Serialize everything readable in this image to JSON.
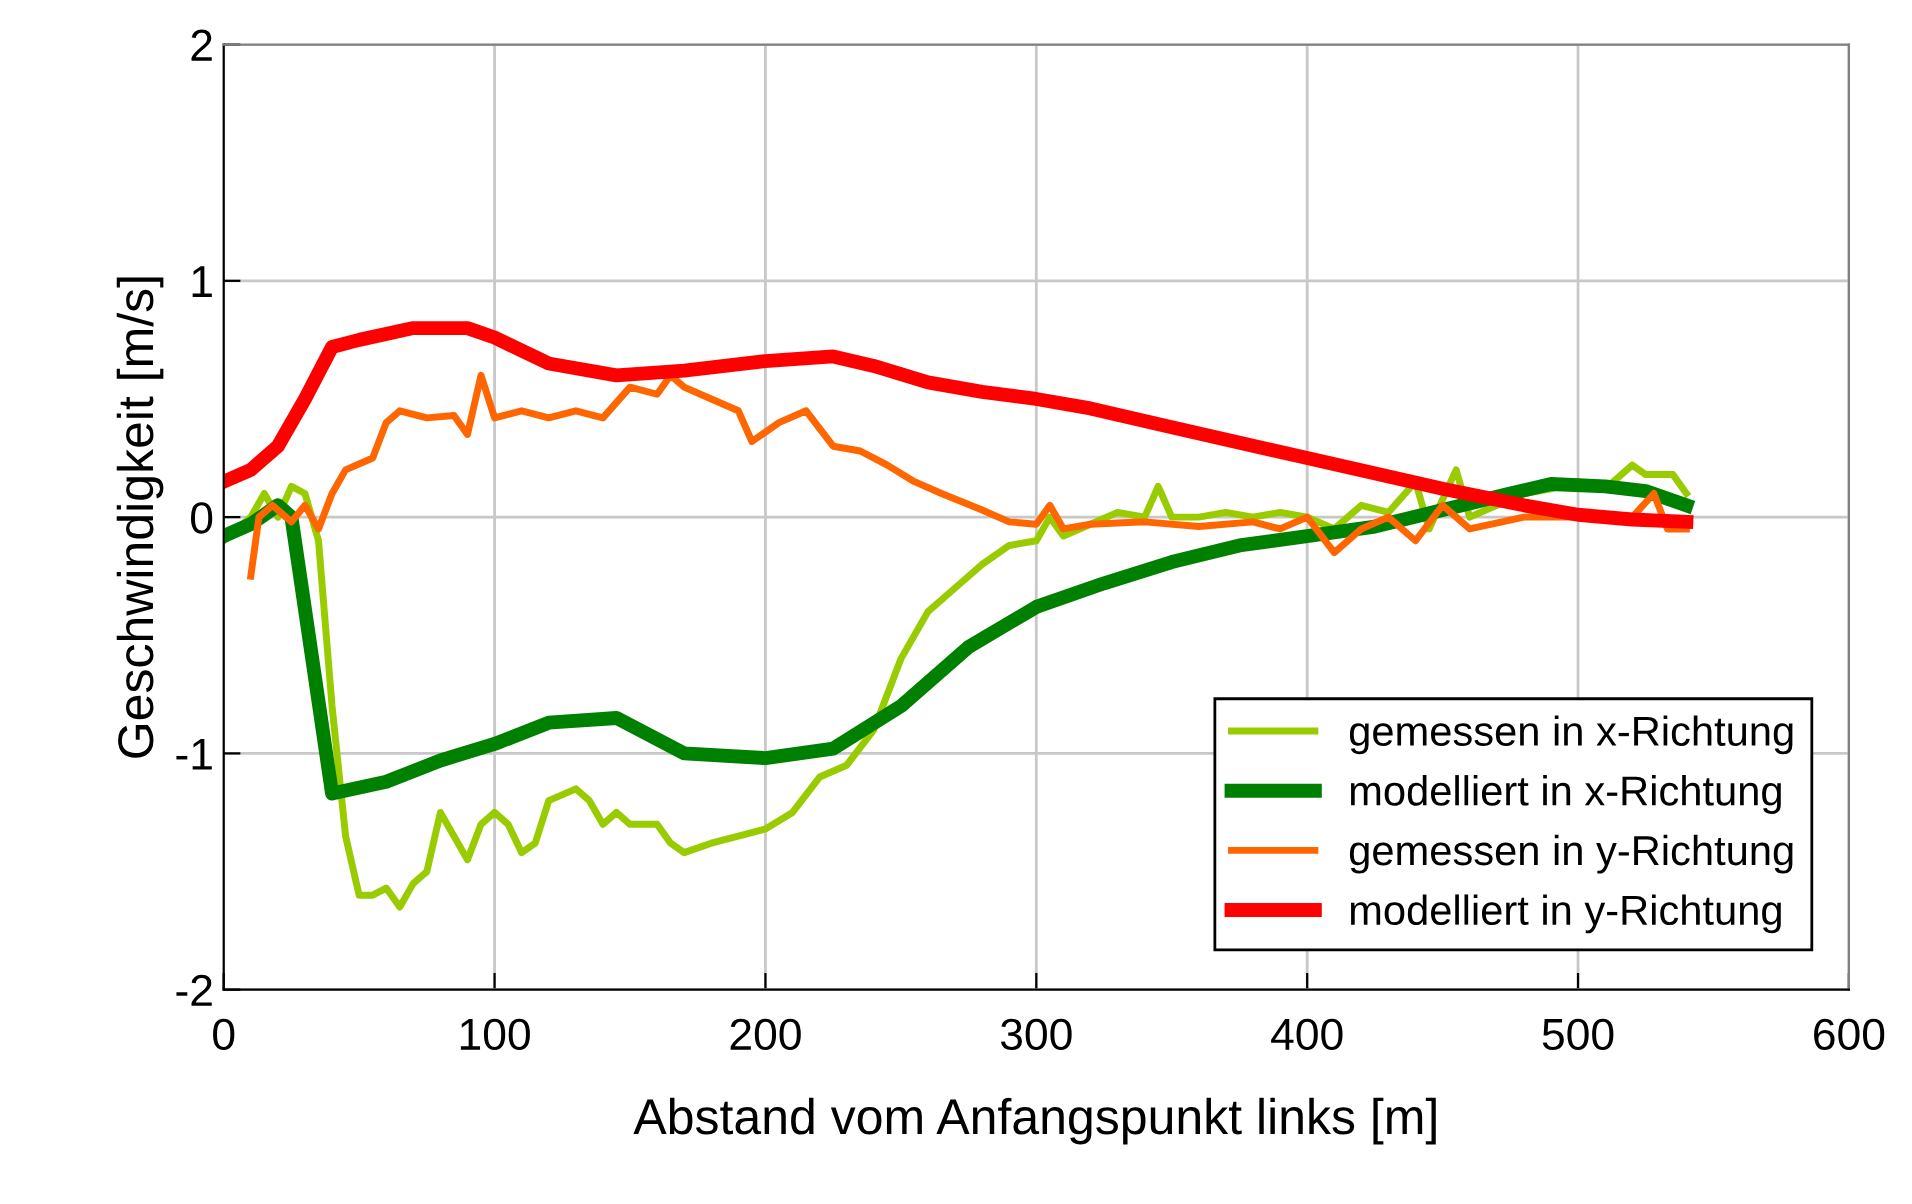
{
  "chart_data": {
    "type": "line",
    "xlabel": "Abstand vom Anfangspunkt links [m]",
    "ylabel": "Geschwindigkeit [m/s]",
    "xlim": [
      0,
      600
    ],
    "xticks": [
      0,
      100,
      200,
      300,
      400,
      500,
      600
    ],
    "ylim": [
      -2,
      2
    ],
    "yticks": [
      -2,
      -1,
      0,
      1,
      2
    ],
    "grid": true,
    "legend": "bottom right",
    "marker": "none",
    "line_style": "solid",
    "series": [
      {
        "name": "gemessen in x-Richtung",
        "color": "#99cc00",
        "x": [
          0,
          10,
          15,
          20,
          25,
          30,
          35,
          40,
          45,
          50,
          55,
          60,
          65,
          70,
          75,
          80,
          85,
          90,
          95,
          100,
          105,
          110,
          115,
          120,
          130,
          135,
          140,
          145,
          150,
          160,
          165,
          170,
          180,
          190,
          200,
          210,
          220,
          230,
          240,
          250,
          260,
          270,
          280,
          290,
          300,
          305,
          310,
          320,
          330,
          340,
          345,
          350,
          360,
          370,
          380,
          390,
          400,
          410,
          420,
          430,
          440,
          445,
          455,
          460,
          470,
          480,
          490,
          500,
          510,
          520,
          525,
          535,
          540
        ],
        "values": [
          -0.1,
          0.0,
          0.1,
          0.0,
          0.13,
          0.1,
          -0.1,
          -0.8,
          -1.35,
          -1.6,
          -1.6,
          -1.57,
          -1.65,
          -1.55,
          -1.5,
          -1.25,
          -1.35,
          -1.45,
          -1.3,
          -1.25,
          -1.3,
          -1.42,
          -1.38,
          -1.2,
          -1.15,
          -1.2,
          -1.3,
          -1.25,
          -1.3,
          -1.3,
          -1.38,
          -1.42,
          -1.38,
          -1.35,
          -1.32,
          -1.25,
          -1.1,
          -1.05,
          -0.9,
          -0.6,
          -0.4,
          -0.3,
          -0.2,
          -0.12,
          -0.1,
          0.0,
          -0.08,
          -0.03,
          0.02,
          0.0,
          0.13,
          0.0,
          0.0,
          0.02,
          0.0,
          0.02,
          0.0,
          -0.05,
          0.05,
          0.02,
          0.15,
          -0.05,
          0.2,
          0.0,
          0.05,
          0.1,
          0.12,
          0.15,
          0.12,
          0.22,
          0.18,
          0.18,
          0.1
        ]
      },
      {
        "name": "modelliert in x-Richtung",
        "color": "#008000",
        "x": [
          0,
          10,
          20,
          25,
          40,
          60,
          80,
          100,
          120,
          145,
          170,
          200,
          225,
          250,
          275,
          300,
          325,
          350,
          375,
          400,
          425,
          450,
          475,
          490,
          510,
          525,
          540
        ],
        "values": [
          -0.08,
          -0.03,
          0.05,
          0.0,
          -1.17,
          -1.12,
          -1.03,
          -0.96,
          -0.87,
          -0.85,
          -1.0,
          -1.02,
          -0.98,
          -0.8,
          -0.55,
          -0.38,
          -0.28,
          -0.19,
          -0.12,
          -0.08,
          -0.04,
          0.03,
          0.1,
          0.14,
          0.13,
          0.11,
          0.05
        ]
      },
      {
        "name": "gemessen in y-Richtung",
        "color": "#ff6600",
        "x": [
          10,
          13,
          18,
          25,
          30,
          35,
          40,
          45,
          55,
          60,
          65,
          75,
          85,
          90,
          95,
          100,
          110,
          120,
          130,
          140,
          150,
          160,
          165,
          170,
          180,
          190,
          195,
          205,
          215,
          225,
          235,
          245,
          255,
          265,
          280,
          290,
          300,
          305,
          310,
          320,
          340,
          360,
          380,
          390,
          400,
          410,
          420,
          430,
          440,
          450,
          460,
          480,
          500,
          520,
          528,
          533,
          540
        ],
        "values": [
          -0.25,
          0.0,
          0.05,
          -0.02,
          0.05,
          -0.05,
          0.1,
          0.2,
          0.25,
          0.4,
          0.45,
          0.42,
          0.43,
          0.35,
          0.6,
          0.42,
          0.45,
          0.42,
          0.45,
          0.42,
          0.55,
          0.52,
          0.6,
          0.55,
          0.5,
          0.45,
          0.32,
          0.4,
          0.45,
          0.3,
          0.28,
          0.22,
          0.15,
          0.1,
          0.03,
          -0.02,
          -0.03,
          0.05,
          -0.05,
          -0.03,
          -0.02,
          -0.04,
          -0.02,
          -0.05,
          0.0,
          -0.15,
          -0.05,
          0.0,
          -0.1,
          0.05,
          -0.05,
          0.0,
          0.0,
          0.0,
          0.1,
          -0.05,
          -0.05
        ]
      },
      {
        "name": "modelliert in y-Richtung",
        "color": "#ff0000",
        "x": [
          0,
          10,
          20,
          30,
          40,
          50,
          70,
          90,
          100,
          120,
          145,
          170,
          200,
          225,
          240,
          260,
          280,
          300,
          320,
          350,
          400,
          450,
          480,
          500,
          520,
          540
        ],
        "values": [
          0.15,
          0.2,
          0.3,
          0.5,
          0.72,
          0.75,
          0.8,
          0.8,
          0.76,
          0.65,
          0.6,
          0.62,
          0.66,
          0.68,
          0.64,
          0.57,
          0.53,
          0.5,
          0.46,
          0.38,
          0.25,
          0.12,
          0.05,
          0.01,
          -0.01,
          -0.02
        ]
      }
    ]
  }
}
